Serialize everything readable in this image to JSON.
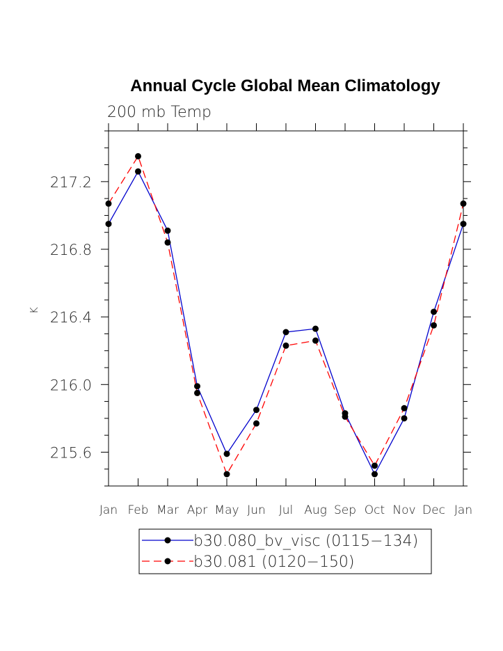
{
  "chart_data": {
    "type": "line",
    "title": "Annual Cycle Global Mean Climatology",
    "subtitle": "200 mb Temp",
    "xlabel": "",
    "ylabel": "K",
    "categories": [
      "Jan",
      "Feb",
      "Mar",
      "Apr",
      "May",
      "Jun",
      "Jul",
      "Aug",
      "Sep",
      "Oct",
      "Nov",
      "Dec",
      "Jan"
    ],
    "ylim": [
      215.4,
      217.5
    ],
    "yticks": [
      {
        "value": 215.6,
        "label": "215.6"
      },
      {
        "value": 216.0,
        "label": "216.0"
      },
      {
        "value": 216.4,
        "label": "216.4"
      },
      {
        "value": 216.8,
        "label": "216.8"
      },
      {
        "value": 217.2,
        "label": "217.2"
      }
    ],
    "series": [
      {
        "name": "b30.080_bv_visc (0115−134)",
        "color": "#0000cc",
        "dash": "solid",
        "values": [
          216.95,
          217.26,
          216.91,
          215.99,
          215.59,
          215.85,
          216.31,
          216.33,
          215.83,
          215.47,
          215.8,
          216.43,
          216.95
        ]
      },
      {
        "name": "b30.081 (0120−150)",
        "color": "#ff0000",
        "dash": "dashed",
        "values": [
          217.07,
          217.35,
          216.84,
          215.95,
          215.47,
          215.77,
          216.23,
          216.26,
          215.81,
          215.52,
          215.86,
          216.35,
          217.07
        ]
      }
    ],
    "legend_position": "bottom"
  }
}
